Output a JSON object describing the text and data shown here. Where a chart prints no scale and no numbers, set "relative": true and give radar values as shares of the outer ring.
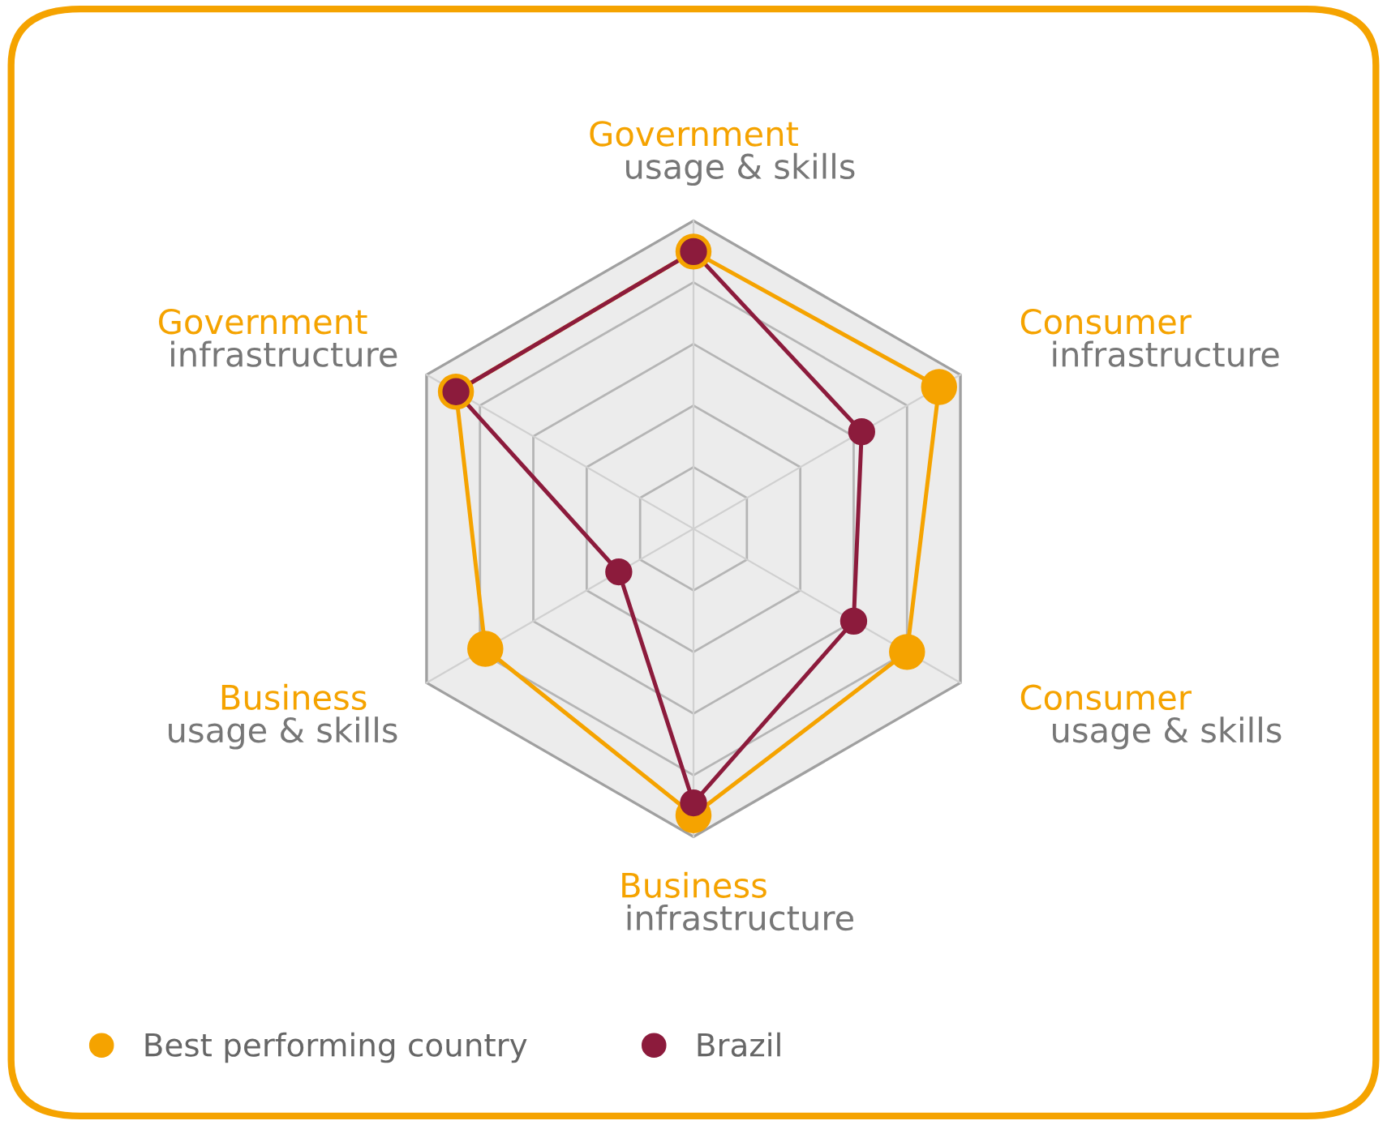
{
  "chart_data": {
    "type": "radar",
    "relative": true,
    "grid": true,
    "marker": "circle",
    "legend": "bottom left",
    "categories": [
      "Government\nusage & skills",
      "Consumer\ninfrastructure",
      "Consumer\nusage & skills",
      "Business\ninfrastructure",
      "Business\nusage & skills",
      "Government\ninfrastructure"
    ],
    "series": [
      {
        "name": "Best performing country",
        "color": "#f5a300",
        "values": [
          0.9,
          0.92,
          0.8,
          0.93,
          0.78,
          0.89
        ]
      },
      {
        "name": "Brazil",
        "color": "#8c1b3c",
        "values": [
          0.9,
          0.63,
          0.6,
          0.89,
          0.28,
          0.89
        ]
      }
    ]
  }
}
